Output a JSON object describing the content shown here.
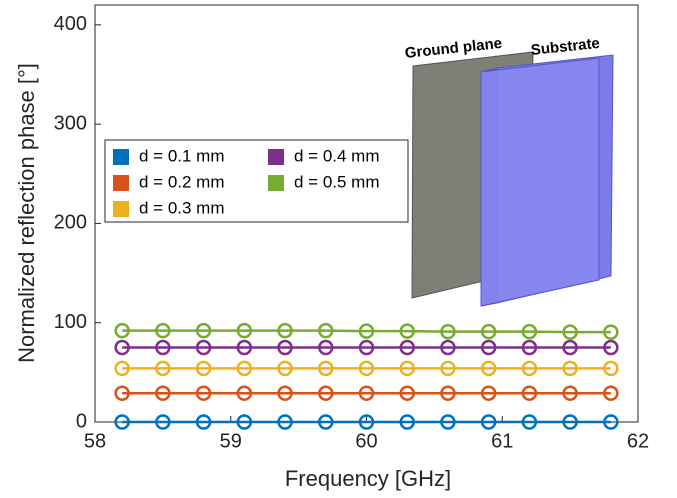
{
  "chart_data": {
    "type": "line",
    "x_label": "Frequency [GHz]",
    "y_label": "Normalized reflection phase [°]",
    "x": [
      58.2,
      58.5,
      58.8,
      59.1,
      59.4,
      59.7,
      60.0,
      60.3,
      60.6,
      60.9,
      61.2,
      61.5,
      61.8
    ],
    "series": [
      {
        "name": "d = 0.1 mm",
        "color": "#0072BD",
        "values": [
          0,
          0,
          0,
          0,
          0,
          0,
          0,
          0,
          0,
          0,
          0,
          0,
          0
        ]
      },
      {
        "name": "d = 0.2 mm",
        "color": "#D95319",
        "values": [
          29,
          29,
          29,
          29,
          29,
          29,
          29,
          29,
          29,
          29,
          29,
          29,
          29
        ]
      },
      {
        "name": "d = 0.3 mm",
        "color": "#EDB120",
        "values": [
          54,
          54,
          54,
          54,
          54,
          54,
          54,
          54,
          54,
          54,
          54,
          54,
          54
        ]
      },
      {
        "name": "d = 0.4 mm",
        "color": "#7E2F8E",
        "values": [
          75,
          75,
          75,
          75,
          75,
          75,
          75,
          75,
          75,
          75,
          75,
          75,
          75
        ]
      },
      {
        "name": "d = 0.5 mm",
        "color": "#77AC30",
        "values": [
          92,
          92,
          92,
          92,
          92,
          92,
          91.5,
          91.5,
          91,
          91,
          91,
          90.5,
          90.5
        ]
      }
    ],
    "xlim": [
      58,
      62
    ],
    "xticks": [
      58,
      59,
      60,
      61,
      62
    ],
    "ylim": [
      0,
      420
    ],
    "yticks": [
      0,
      100,
      200,
      300,
      400
    ],
    "annotations": [
      "Ground plane",
      "Substrate"
    ]
  }
}
